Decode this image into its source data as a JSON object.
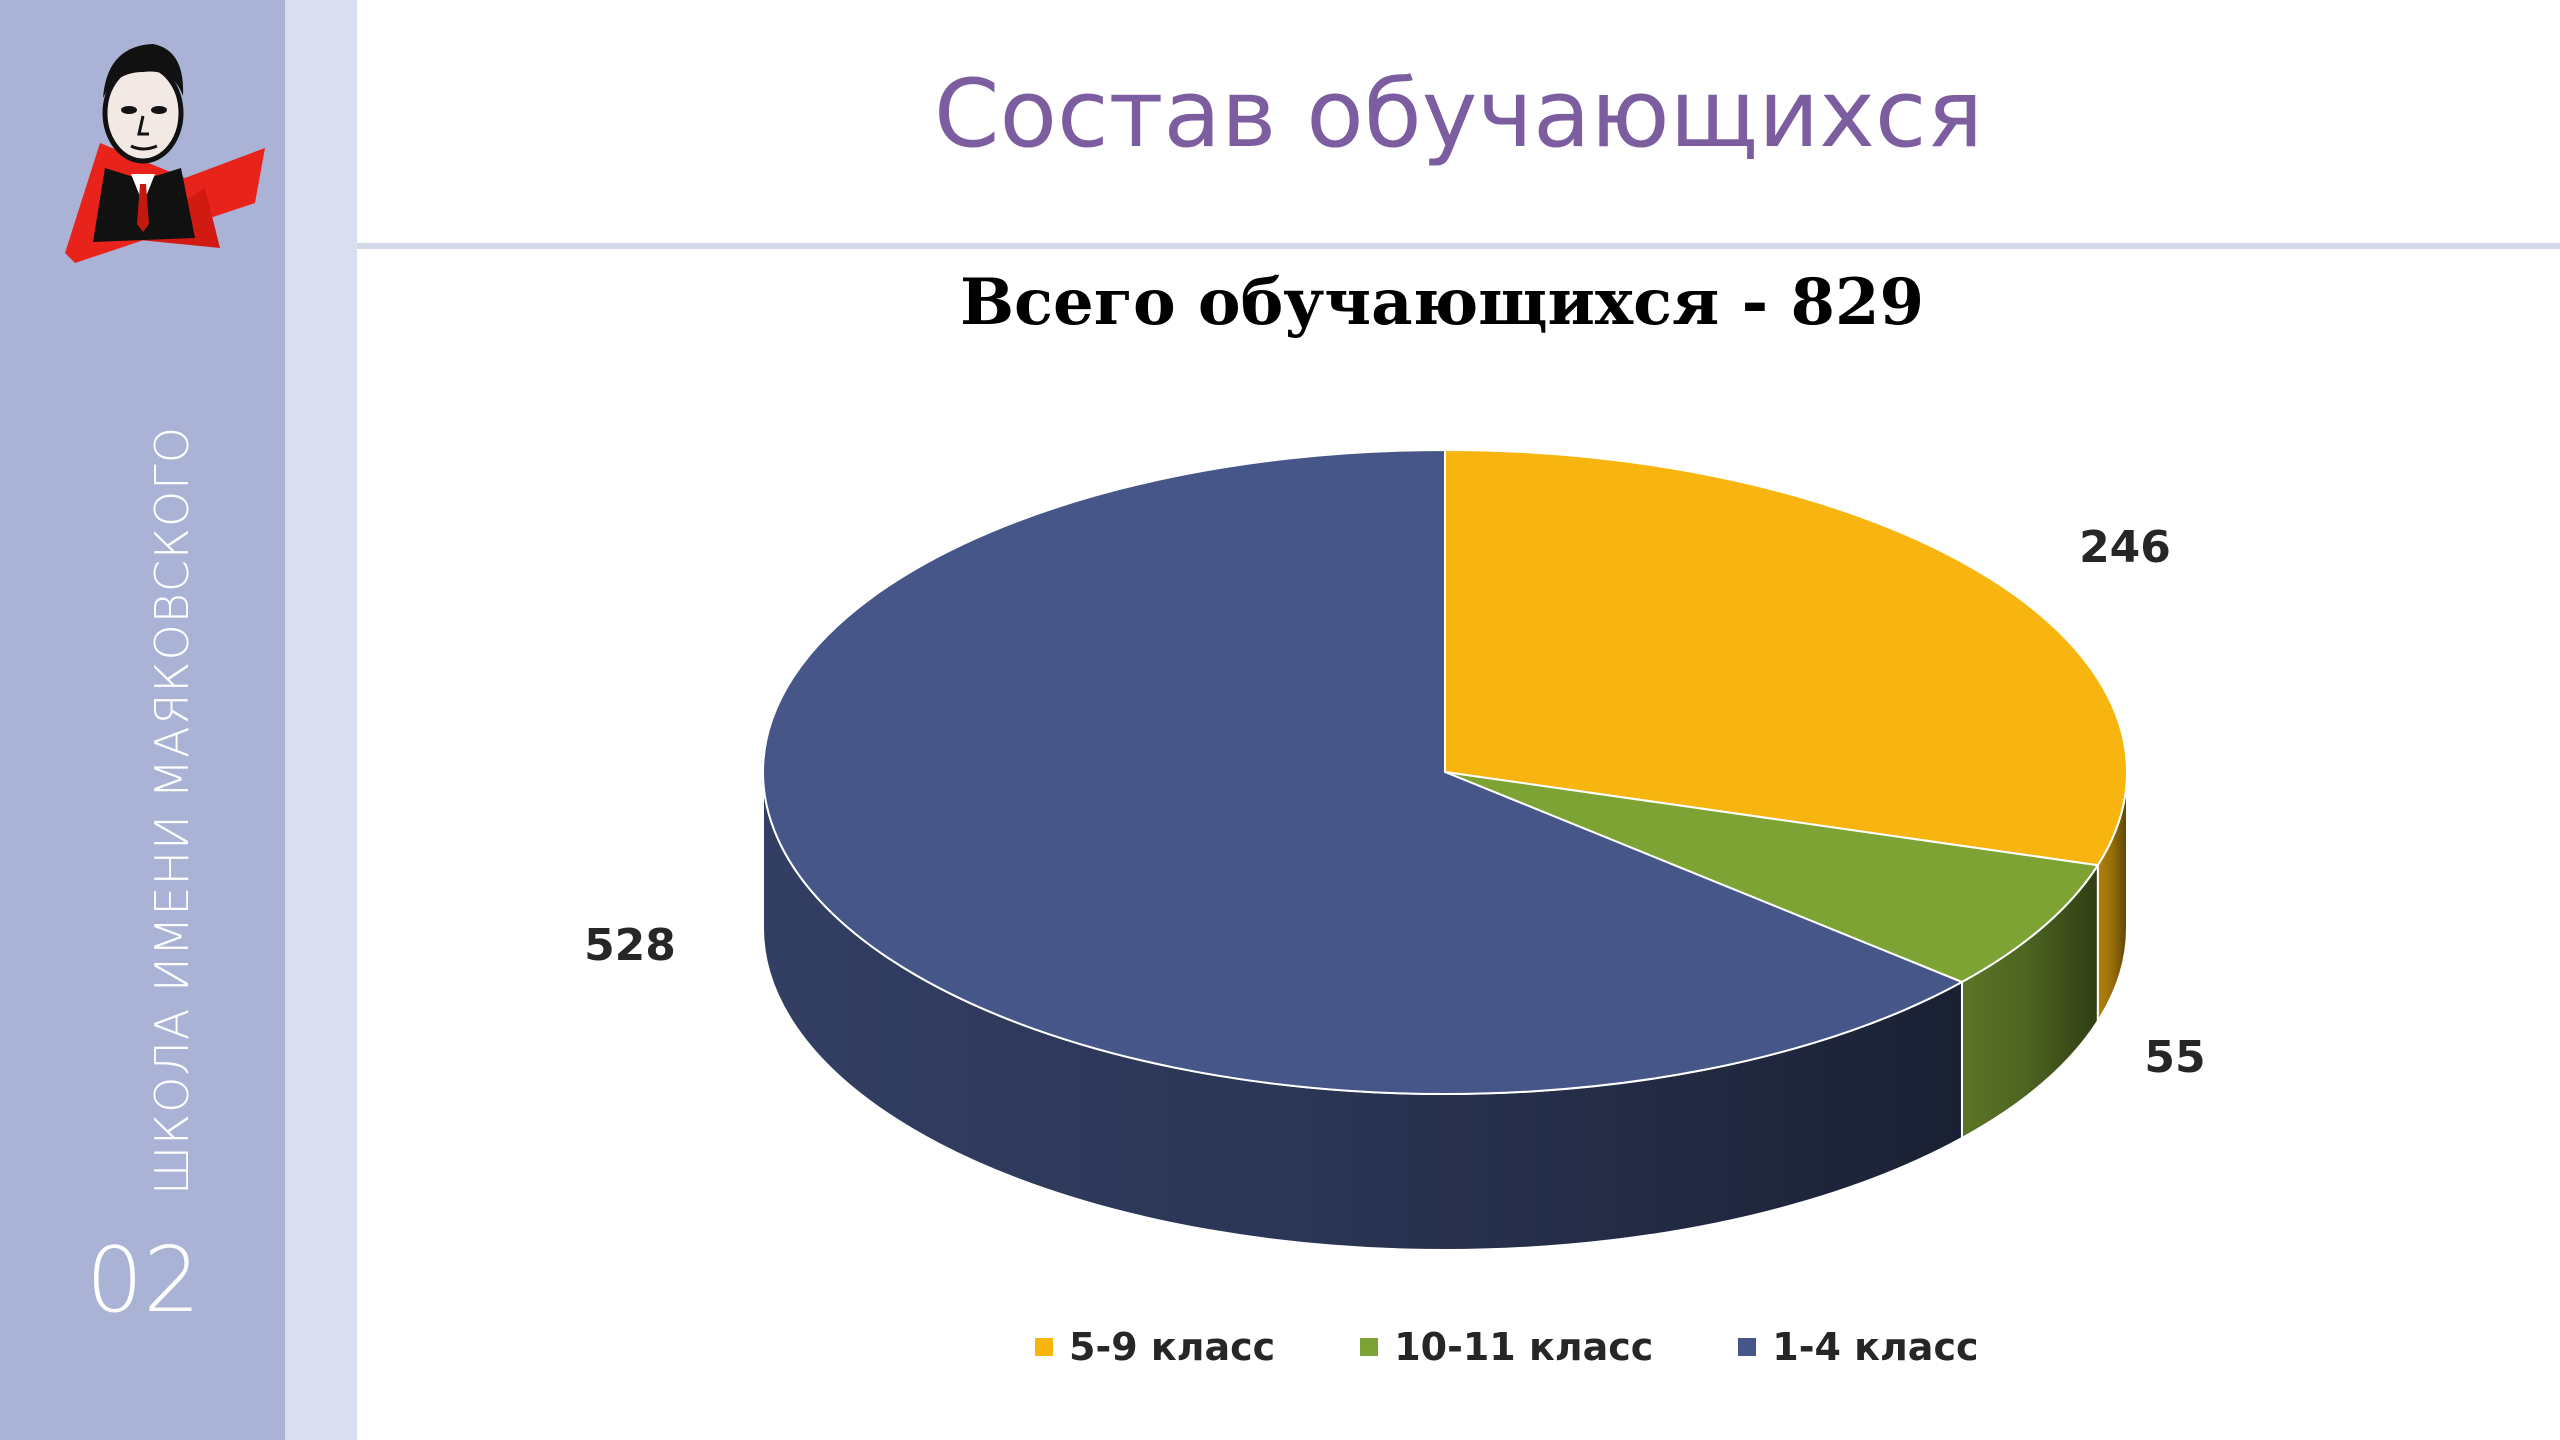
{
  "header": {
    "title": "Состав обучающихся"
  },
  "sidebar": {
    "school_name": "ШКОЛА ИМЕНИ МАЯКОВСКОГО",
    "slide_number": "02",
    "logo_icon": "portrait-logo-icon"
  },
  "colors": {
    "sidebar": "#aab3d6",
    "title": "#7c5ea0"
  },
  "chart_data": {
    "type": "pie",
    "style": "3d",
    "title": "Всего обучающихся - 829",
    "slices": [
      {
        "label": "5-9 класс",
        "value": 246,
        "color": "#f8b40f"
      },
      {
        "label": "10-11 класс",
        "value": 55,
        "color": "#7ea335"
      },
      {
        "label": "1-4 класс",
        "value": 528,
        "color": "#465689"
      }
    ],
    "legend": {
      "position": "bottom",
      "items": [
        "5-9 класс",
        "10-11 класс",
        "1-4 класс"
      ]
    },
    "data_labels": [
      "246",
      "55",
      "528"
    ]
  }
}
